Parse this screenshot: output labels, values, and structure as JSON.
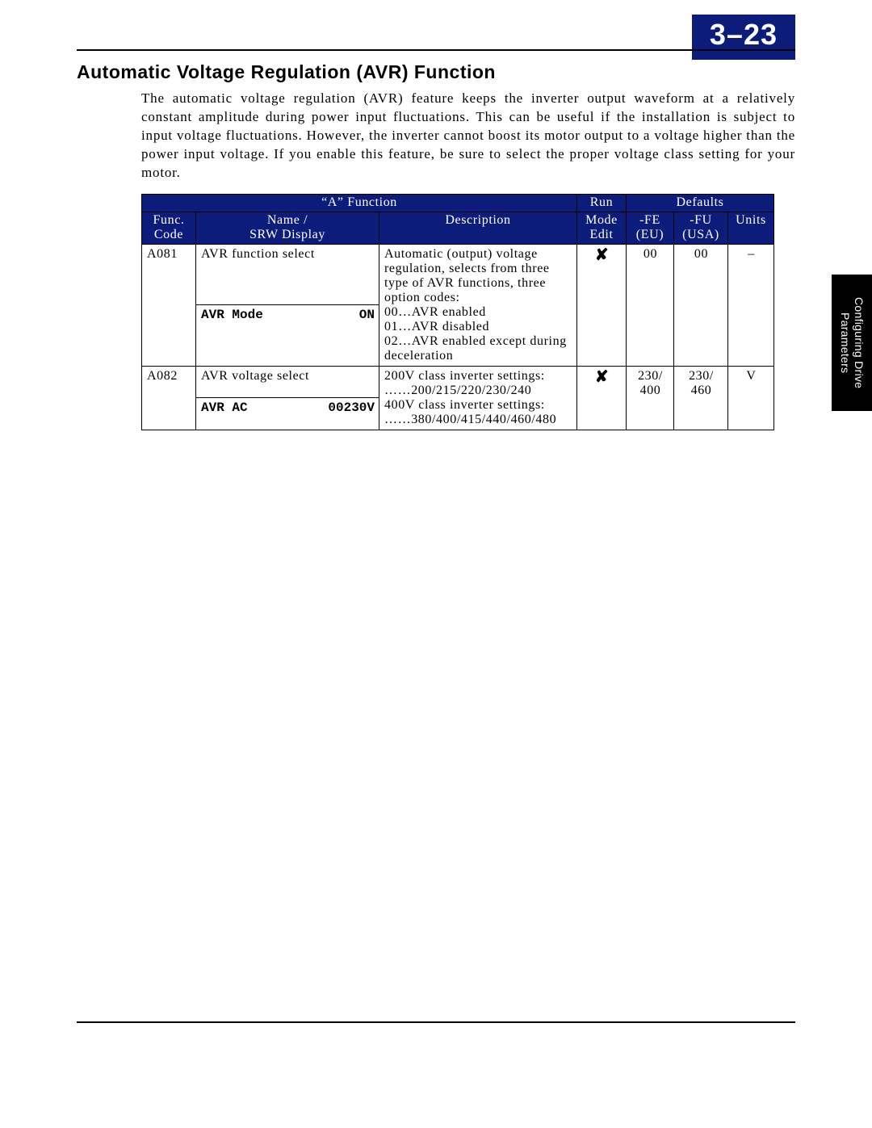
{
  "page_number": "3–23",
  "section_title": "Automatic Voltage Regulation (AVR) Function",
  "body_paragraph": "The automatic voltage regulation (AVR) feature keeps the inverter output waveform at a relatively constant amplitude during power input fluctuations. This can be useful if the installation is subject to input voltage fluctuations. However, the inverter cannot boost its motor output to a voltage higher than the power input voltage. If you enable this feature, be sure to select the proper voltage class setting for your motor.",
  "side_tab": "Configuring Drive\nParameters",
  "table": {
    "group_header_left": "“A” Function",
    "group_header_run": "Run",
    "group_header_defaults": "Defaults",
    "columns": {
      "func": "Func.\nCode",
      "name": "Name /\nSRW Display",
      "desc": "Description",
      "mode": "Mode\nEdit",
      "fe": "-FE\n(EU)",
      "fu": "-FU\n(USA)",
      "units": "Units"
    },
    "rows": [
      {
        "code": "A081",
        "name": "AVR function select",
        "description": "Automatic (output) voltage regulation, selects from three type of AVR functions, three option codes:\n00…AVR enabled\n01…AVR disabled\n02…AVR enabled except during deceleration",
        "mode_glyph": "✘",
        "fe": "00",
        "fu": "00",
        "units": "–",
        "srw_left": "AVR Mode",
        "srw_right": "ON"
      },
      {
        "code": "A082",
        "name": "AVR voltage select",
        "description": "200V class inverter settings:\n……200/215/220/230/240\n400V class inverter settings:\n……380/400/415/440/460/480",
        "mode_glyph": "✘",
        "fe": "230/\n400",
        "fu": "230/\n460",
        "units": "V",
        "srw_left": "AVR AC",
        "srw_right": "00230V"
      }
    ]
  },
  "colors": {
    "header_blue": "#0b1c7a",
    "black": "#000000",
    "white": "#ffffff"
  }
}
